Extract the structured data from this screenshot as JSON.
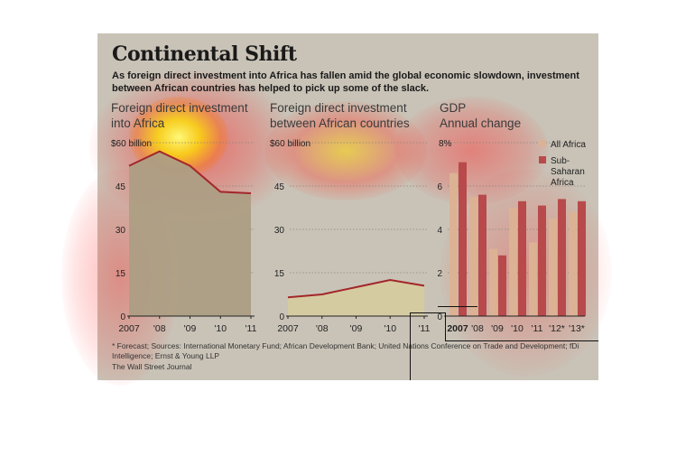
{
  "header": {
    "title": "Continental Shift",
    "subtitle": "As foreign direct investment into Africa has fallen amid the global economic slowdown, investment between African countries has helped to pick up some of the slack."
  },
  "footer": {
    "footnote": "* Forecast; Sources: International Monetary Fund; African Development Bank; United Nations Conference on Trade and Development; fDi Intelligence; Ernst & Young LLP",
    "credit": "The Wall Street Journal"
  },
  "colors": {
    "line": "#a3262a",
    "area_fdi": "#ad9e84",
    "area_intra": "#d6cb9f",
    "bar_all_africa": "#dcb294",
    "bar_subsaharan": "#b84a4b",
    "heat": "#ff3030",
    "heat_hot": "#fff200"
  },
  "chart_data": [
    {
      "type": "area",
      "title": "Foreign direct investment into Africa",
      "title_lines": [
        "Foreign direct investment",
        "into Africa"
      ],
      "x": [
        "2007",
        "'08",
        "'09",
        "'10",
        "'11"
      ],
      "y": [
        52,
        57,
        52,
        43,
        42.5
      ],
      "ylim": [
        0,
        60
      ],
      "yticks": [
        "0",
        "15",
        "30",
        "45",
        "$60 billion"
      ],
      "grid": true
    },
    {
      "type": "area",
      "title": "Foreign direct investment between African countries",
      "title_lines": [
        "Foreign direct investment",
        "between African countries"
      ],
      "x": [
        "2007",
        "'08",
        "'09",
        "'10",
        "'11"
      ],
      "y": [
        6.5,
        7.5,
        10,
        12.5,
        10.5
      ],
      "ylim": [
        0,
        60
      ],
      "yticks": [
        "0",
        "15",
        "30",
        "45",
        "$60 billion"
      ],
      "grid": true
    },
    {
      "type": "bar",
      "title": "GDP Annual change",
      "title_lines": [
        "GDP",
        "Annual change"
      ],
      "categories": [
        "2007",
        "'08",
        "'09",
        "'10",
        "'11",
        "'12*",
        "'13*"
      ],
      "series": [
        {
          "name": "All Africa",
          "values": [
            6.6,
            5.5,
            3.1,
            5.0,
            3.4,
            4.5,
            4.8
          ]
        },
        {
          "name": "Sub-Saharan Africa",
          "values": [
            7.1,
            5.6,
            2.8,
            5.3,
            5.1,
            5.4,
            5.3
          ]
        }
      ],
      "legend": [
        {
          "lines": [
            "All Africa"
          ]
        },
        {
          "lines": [
            "Sub-",
            "Saharan",
            "Africa"
          ]
        }
      ],
      "ylim": [
        0,
        8
      ],
      "yticks": [
        "0",
        "2",
        "4",
        "6",
        "8%"
      ],
      "legend_position": "top-right",
      "grid": true
    }
  ]
}
